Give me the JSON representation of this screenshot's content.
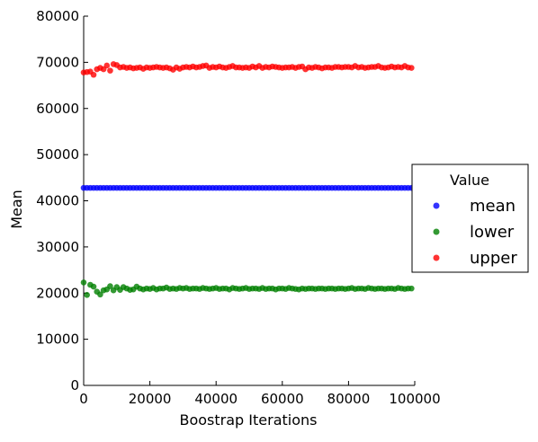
{
  "chart_data": {
    "type": "scatter",
    "title": "",
    "xlabel": "Boostrap Iterations",
    "ylabel": "Mean",
    "xlim": [
      0,
      100000
    ],
    "ylim": [
      0,
      80000
    ],
    "xticks": [
      0,
      20000,
      40000,
      60000,
      80000,
      100000
    ],
    "yticks": [
      0,
      10000,
      20000,
      30000,
      40000,
      50000,
      60000,
      70000,
      80000
    ],
    "grid": false,
    "legend": {
      "title": "Value",
      "placement": "outside-right",
      "entries": [
        "mean",
        "lower",
        "upper"
      ]
    },
    "series": [
      {
        "name": "mean",
        "color": "#0000ff",
        "x": [
          0,
          1000,
          2000,
          3000,
          4000,
          5000,
          6000,
          7000,
          8000,
          9000,
          10000,
          11000,
          12000,
          13000,
          14000,
          15000,
          16000,
          17000,
          18000,
          19000,
          20000,
          21000,
          22000,
          23000,
          24000,
          25000,
          26000,
          27000,
          28000,
          29000,
          30000,
          31000,
          32000,
          33000,
          34000,
          35000,
          36000,
          37000,
          38000,
          39000,
          40000,
          41000,
          42000,
          43000,
          44000,
          45000,
          46000,
          47000,
          48000,
          49000,
          50000,
          51000,
          52000,
          53000,
          54000,
          55000,
          56000,
          57000,
          58000,
          59000,
          60000,
          61000,
          62000,
          63000,
          64000,
          65000,
          66000,
          67000,
          68000,
          69000,
          70000,
          71000,
          72000,
          73000,
          74000,
          75000,
          76000,
          77000,
          78000,
          79000,
          80000,
          81000,
          82000,
          83000,
          84000,
          85000,
          86000,
          87000,
          88000,
          89000,
          90000,
          91000,
          92000,
          93000,
          94000,
          95000,
          96000,
          97000,
          98000,
          99000
        ],
        "y": [
          42800,
          42800,
          42800,
          42800,
          42800,
          42800,
          42800,
          42800,
          42800,
          42800,
          42800,
          42800,
          42800,
          42800,
          42800,
          42800,
          42800,
          42800,
          42800,
          42800,
          42800,
          42800,
          42800,
          42800,
          42800,
          42800,
          42800,
          42800,
          42800,
          42800,
          42800,
          42800,
          42800,
          42800,
          42800,
          42800,
          42800,
          42800,
          42800,
          42800,
          42800,
          42800,
          42800,
          42800,
          42800,
          42800,
          42800,
          42800,
          42800,
          42800,
          42800,
          42800,
          42800,
          42800,
          42800,
          42800,
          42800,
          42800,
          42800,
          42800,
          42800,
          42800,
          42800,
          42800,
          42800,
          42800,
          42800,
          42800,
          42800,
          42800,
          42800,
          42800,
          42800,
          42800,
          42800,
          42800,
          42800,
          42800,
          42800,
          42800,
          42800,
          42800,
          42800,
          42800,
          42800,
          42800,
          42800,
          42800,
          42800,
          42800,
          42800,
          42800,
          42800,
          42800,
          42800,
          42800,
          42800,
          42800,
          42800,
          42800
        ]
      },
      {
        "name": "lower",
        "color": "#008000",
        "x": [
          0,
          1000,
          2000,
          3000,
          4000,
          5000,
          6000,
          7000,
          8000,
          9000,
          10000,
          11000,
          12000,
          13000,
          14000,
          15000,
          16000,
          17000,
          18000,
          19000,
          20000,
          21000,
          22000,
          23000,
          24000,
          25000,
          26000,
          27000,
          28000,
          29000,
          30000,
          31000,
          32000,
          33000,
          34000,
          35000,
          36000,
          37000,
          38000,
          39000,
          40000,
          41000,
          42000,
          43000,
          44000,
          45000,
          46000,
          47000,
          48000,
          49000,
          50000,
          51000,
          52000,
          53000,
          54000,
          55000,
          56000,
          57000,
          58000,
          59000,
          60000,
          61000,
          62000,
          63000,
          64000,
          65000,
          66000,
          67000,
          68000,
          69000,
          70000,
          71000,
          72000,
          73000,
          74000,
          75000,
          76000,
          77000,
          78000,
          79000,
          80000,
          81000,
          82000,
          83000,
          84000,
          85000,
          86000,
          87000,
          88000,
          89000,
          90000,
          91000,
          92000,
          93000,
          94000,
          95000,
          96000,
          97000,
          98000,
          99000
        ],
        "y": [
          22300,
          19600,
          21800,
          21400,
          20300,
          19700,
          20600,
          20800,
          21500,
          20600,
          21300,
          20700,
          21300,
          21000,
          20700,
          20800,
          21400,
          21000,
          20800,
          21000,
          20900,
          21100,
          20800,
          21000,
          21000,
          21200,
          20900,
          21000,
          20900,
          21100,
          21000,
          21100,
          20900,
          21000,
          21000,
          20900,
          21100,
          21000,
          20900,
          21000,
          21100,
          20900,
          21000,
          21000,
          20800,
          21100,
          21000,
          20900,
          21000,
          21100,
          20900,
          21000,
          21000,
          20900,
          21100,
          20900,
          21000,
          21000,
          20800,
          21000,
          21000,
          20900,
          21100,
          21000,
          20900,
          20800,
          21000,
          20900,
          21000,
          21000,
          20900,
          21000,
          21000,
          20900,
          21000,
          21000,
          20900,
          21000,
          21000,
          20900,
          21000,
          21100,
          20900,
          21000,
          21000,
          20900,
          21100,
          21000,
          20900,
          21000,
          21000,
          20900,
          21000,
          21000,
          20900,
          21100,
          21000,
          20900,
          21000,
          21000
        ]
      },
      {
        "name": "upper",
        "color": "#ff0000",
        "x": [
          0,
          1000,
          2000,
          3000,
          4000,
          5000,
          6000,
          7000,
          8000,
          9000,
          10000,
          11000,
          12000,
          13000,
          14000,
          15000,
          16000,
          17000,
          18000,
          19000,
          20000,
          21000,
          22000,
          23000,
          24000,
          25000,
          26000,
          27000,
          28000,
          29000,
          30000,
          31000,
          32000,
          33000,
          34000,
          35000,
          36000,
          37000,
          38000,
          39000,
          40000,
          41000,
          42000,
          43000,
          44000,
          45000,
          46000,
          47000,
          48000,
          49000,
          50000,
          51000,
          52000,
          53000,
          54000,
          55000,
          56000,
          57000,
          58000,
          59000,
          60000,
          61000,
          62000,
          63000,
          64000,
          65000,
          66000,
          67000,
          68000,
          69000,
          70000,
          71000,
          72000,
          73000,
          74000,
          75000,
          76000,
          77000,
          78000,
          79000,
          80000,
          81000,
          82000,
          83000,
          84000,
          85000,
          86000,
          87000,
          88000,
          89000,
          90000,
          91000,
          92000,
          93000,
          94000,
          95000,
          96000,
          97000,
          98000,
          99000
        ],
        "y": [
          67800,
          67900,
          68000,
          67300,
          68500,
          68800,
          68500,
          69300,
          68200,
          69600,
          69400,
          68900,
          69000,
          68800,
          68900,
          68700,
          68800,
          68900,
          68600,
          68900,
          68800,
          68900,
          69000,
          68900,
          68800,
          68900,
          68700,
          68400,
          68900,
          68600,
          68900,
          69000,
          68900,
          69100,
          68900,
          69000,
          69200,
          69300,
          68800,
          69000,
          68900,
          69100,
          68900,
          68800,
          69000,
          69200,
          68900,
          68900,
          68800,
          68900,
          68800,
          69100,
          68900,
          69200,
          68800,
          69000,
          68900,
          69100,
          69000,
          68900,
          68800,
          68900,
          68900,
          69000,
          68800,
          69000,
          69100,
          68500,
          68900,
          68800,
          69000,
          68900,
          68700,
          68900,
          68900,
          68800,
          69000,
          69000,
          68900,
          69000,
          69000,
          68900,
          69200,
          68900,
          69000,
          68800,
          68900,
          69000,
          69000,
          69200,
          68900,
          68800,
          68900,
          69100,
          68900,
          69000,
          68900,
          69200,
          68900,
          68800
        ]
      }
    ]
  }
}
